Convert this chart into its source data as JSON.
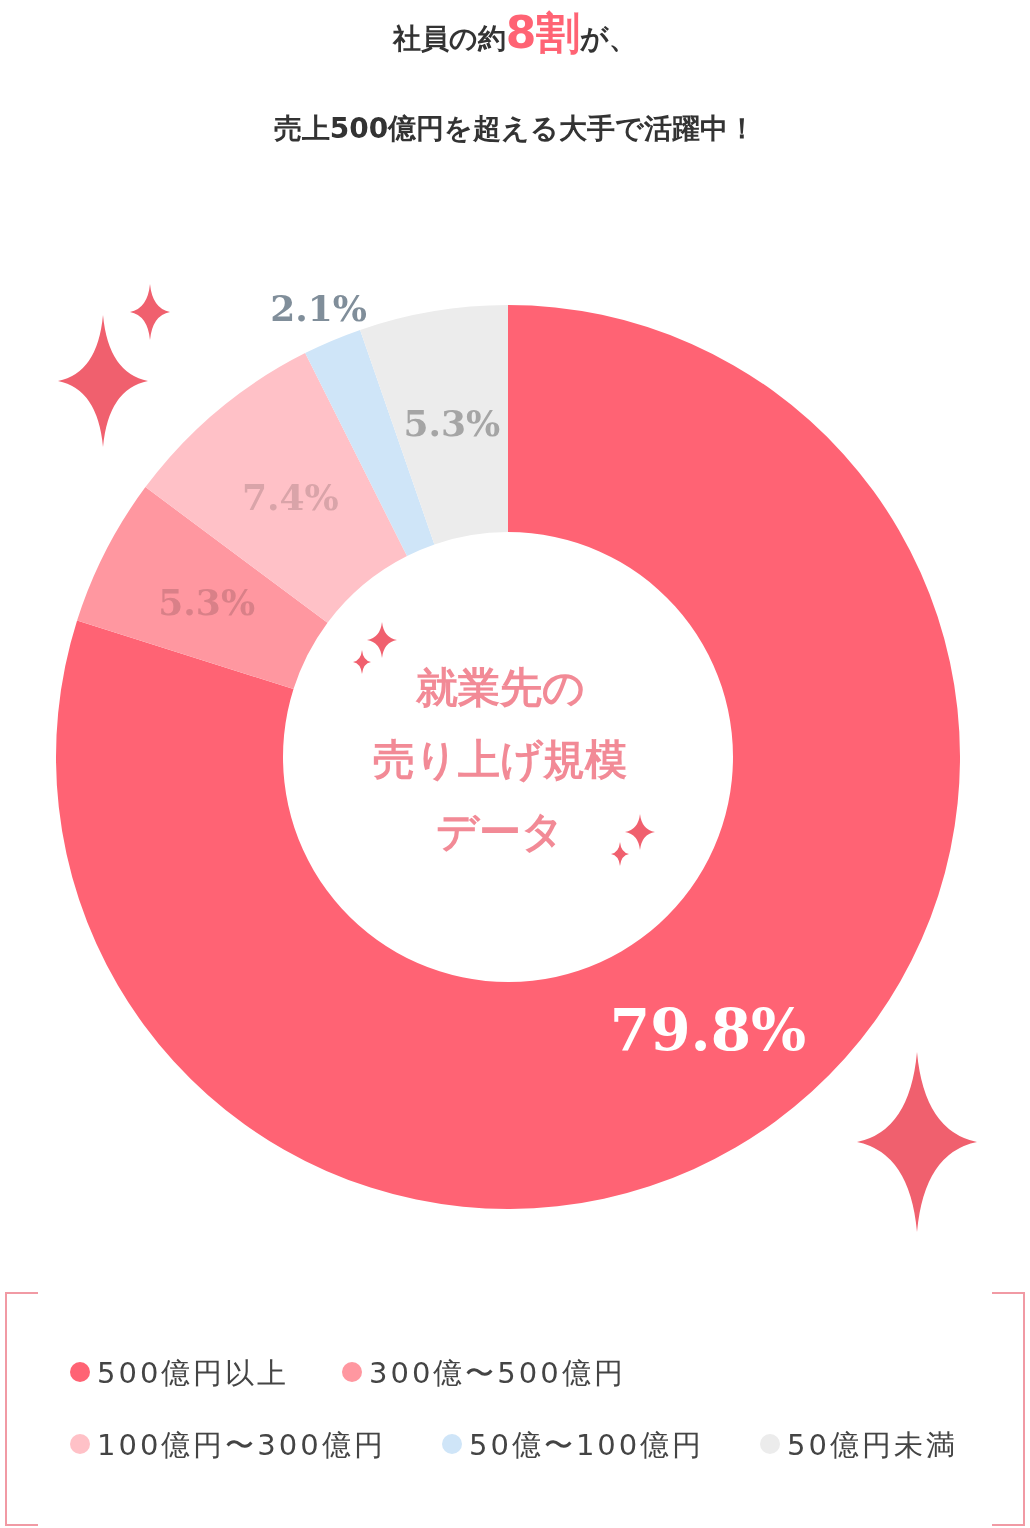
{
  "chart_data": {
    "type": "donut",
    "title": "社員の約8割が、",
    "subtitle": "売上500億円を超える大手で活躍中！",
    "categories": [
      "500億円以上",
      "300億〜500億円",
      "100億円〜300億円",
      "50億〜100億円",
      "50億円未満"
    ],
    "values": [
      79.8,
      5.3,
      7.4,
      2.1,
      5.3
    ],
    "colors": [
      "#ff6374",
      "#ff97a0",
      "#ffc1c7",
      "#cfe5f8",
      "#ececec"
    ],
    "value_labels": [
      "79.8%",
      "5.3%",
      "7.4%",
      "2.1%",
      "5.3%"
    ],
    "annotations": [
      "就業先の",
      "売り上げ規模",
      "データ"
    ],
    "legend": "bottom"
  }
}
